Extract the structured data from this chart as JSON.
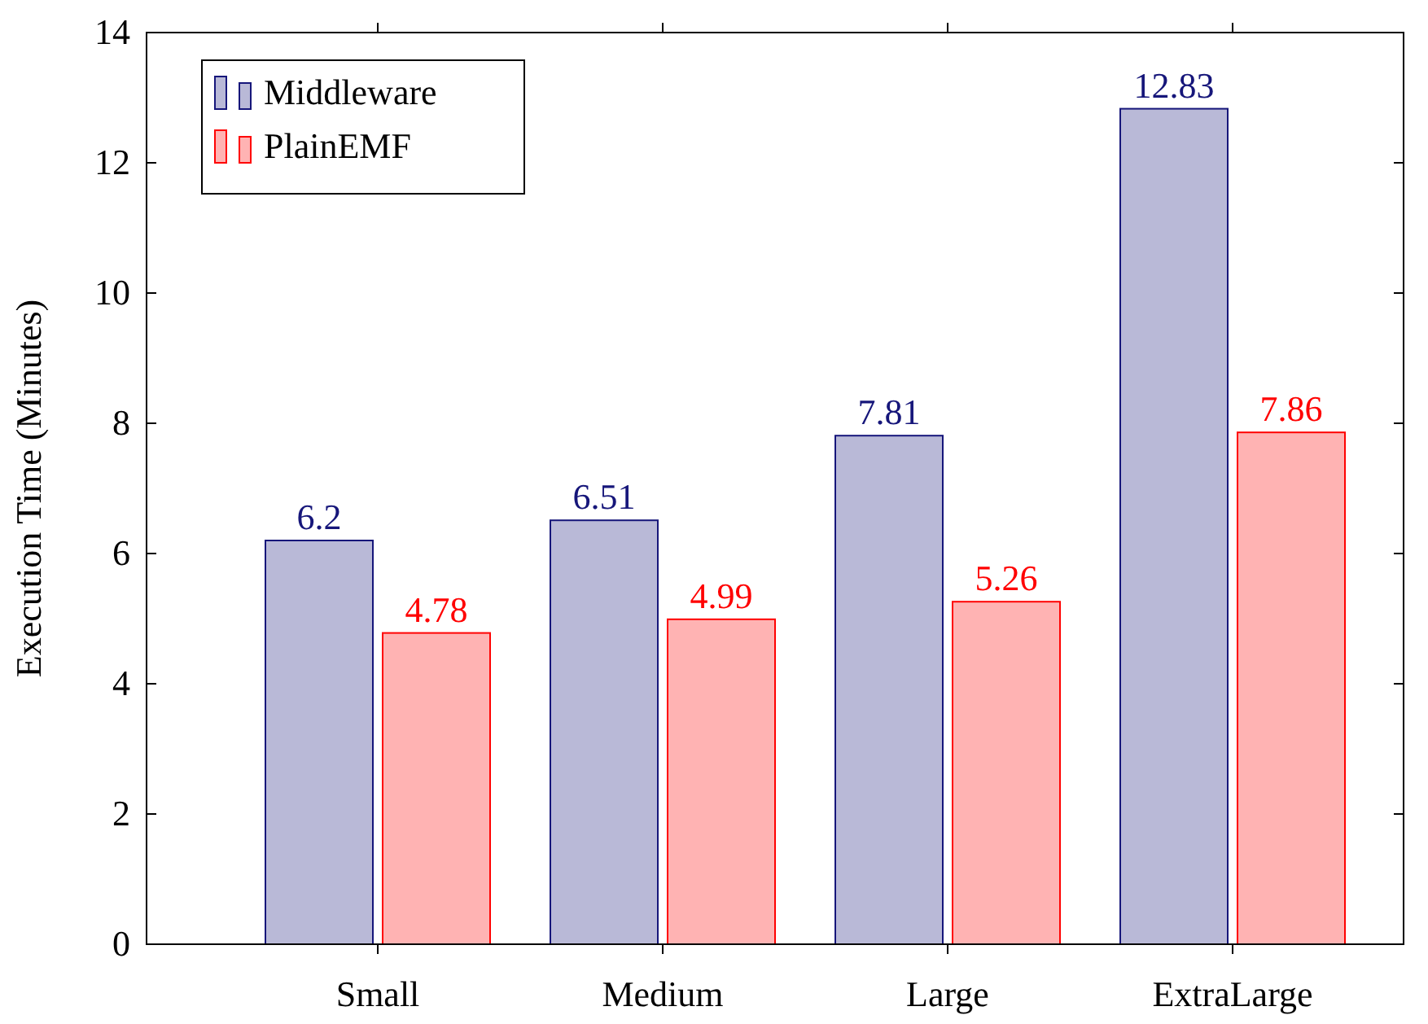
{
  "chart_data": {
    "type": "bar",
    "ylabel": "Execution Time (Minutes)",
    "categories": [
      "Small",
      "Medium",
      "Large",
      "ExtraLarge"
    ],
    "series": [
      {
        "name": "Middleware",
        "color": "#b9b9d7",
        "values": [
          6.2,
          6.51,
          7.81,
          12.83
        ]
      },
      {
        "name": "PlainEMF",
        "color": "#ffb3b3",
        "values": [
          4.78,
          4.99,
          5.26,
          7.86
        ]
      }
    ],
    "ylim": [
      0,
      14
    ],
    "yticks": [
      0,
      2,
      4,
      6,
      8,
      10,
      12,
      14
    ],
    "data_labels": true,
    "legend": "top left",
    "grid": false
  }
}
